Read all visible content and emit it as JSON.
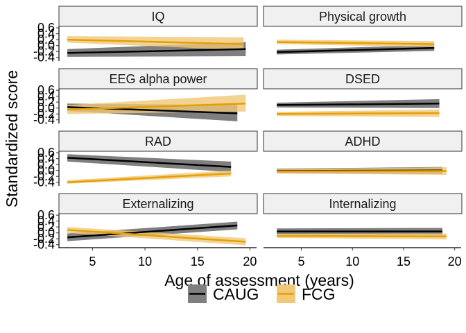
{
  "chart_data": {
    "type": "line",
    "title": "",
    "xlabel": "Age of assessment (years)",
    "ylabel": "Standardized score",
    "xticks": [
      5,
      10,
      15,
      20
    ],
    "yticks": [
      0.6,
      0.4,
      0.2,
      0.0,
      -0.2,
      -0.4
    ],
    "ytick_labels": [
      "0.6",
      "0.4",
      "0.2",
      "0.0",
      "-0.2",
      "-0.4"
    ],
    "ylim": [
      -0.5,
      0.65
    ],
    "legend": {
      "position": "bottom",
      "entries": [
        {
          "label": "CAUG",
          "line_color": "#000000",
          "fill_color": "#7f7f7f"
        },
        {
          "label": "FCG",
          "line_color": "#e69f00",
          "fill_color": "#f0c878"
        }
      ]
    },
    "panels": [
      {
        "label": "IQ",
        "xlim": [
          1.8,
          20.7
        ],
        "series": [
          {
            "name": "CAUG",
            "x": [
              2.6,
              19.6
            ],
            "y": [
              -0.25,
              -0.12
            ],
            "lo": [
              -0.38,
              -0.36
            ],
            "hi": [
              -0.12,
              0.12
            ]
          },
          {
            "name": "FCG",
            "x": [
              2.6,
              19.4
            ],
            "y": [
              0.2,
              0.05
            ],
            "lo": [
              0.1,
              -0.15
            ],
            "hi": [
              0.32,
              0.28
            ]
          }
        ]
      },
      {
        "label": "Physical growth",
        "xlim": [
          1.3,
          20.7
        ],
        "series": [
          {
            "name": "CAUG",
            "x": [
              2.6,
              18.0
            ],
            "y": [
              -0.22,
              -0.08
            ],
            "lo": [
              -0.3,
              -0.18
            ],
            "hi": [
              -0.14,
              0.02
            ]
          },
          {
            "name": "FCG",
            "x": [
              2.6,
              18.0
            ],
            "y": [
              0.12,
              0.05
            ],
            "lo": [
              0.05,
              -0.05
            ],
            "hi": [
              0.2,
              0.15
            ]
          }
        ]
      },
      {
        "label": "EEG alpha power",
        "xlim": [
          1.8,
          20.7
        ],
        "series": [
          {
            "name": "CAUG",
            "x": [
              2.6,
              18.8
            ],
            "y": [
              0.03,
              -0.18
            ],
            "lo": [
              -0.1,
              -0.45
            ],
            "hi": [
              0.15,
              0.1
            ]
          },
          {
            "name": "FCG",
            "x": [
              2.6,
              19.6
            ],
            "y": [
              -0.05,
              0.15
            ],
            "lo": [
              -0.2,
              -0.12
            ],
            "hi": [
              0.1,
              0.45
            ]
          }
        ]
      },
      {
        "label": "DSED",
        "xlim": [
          1.3,
          20.7
        ],
        "series": [
          {
            "name": "CAUG",
            "x": [
              2.6,
              18.5
            ],
            "y": [
              0.1,
              0.15
            ],
            "lo": [
              0.02,
              0.0
            ],
            "hi": [
              0.18,
              0.3
            ]
          },
          {
            "name": "FCG",
            "x": [
              2.6,
              18.5
            ],
            "y": [
              -0.2,
              -0.17
            ],
            "lo": [
              -0.27,
              -0.3
            ],
            "hi": [
              -0.13,
              -0.05
            ]
          }
        ]
      },
      {
        "label": "RAD",
        "xlim": [
          1.8,
          20.7
        ],
        "series": [
          {
            "name": "CAUG",
            "x": [
              2.6,
              18.2
            ],
            "y": [
              0.43,
              0.12
            ],
            "lo": [
              0.3,
              -0.05
            ],
            "hi": [
              0.55,
              0.3
            ]
          },
          {
            "name": "FCG",
            "x": [
              2.6,
              18.2
            ],
            "y": [
              -0.4,
              -0.1
            ],
            "lo": [
              -0.45,
              -0.2
            ],
            "hi": [
              -0.33,
              0.0
            ]
          }
        ]
      },
      {
        "label": "ADHD",
        "xlim": [
          1.3,
          20.7
        ],
        "series": [
          {
            "name": "CAUG",
            "x": [
              2.6,
              18.8
            ],
            "y": [
              -0.02,
              0.0
            ],
            "lo": [
              -0.1,
              -0.12
            ],
            "hi": [
              0.06,
              0.12
            ]
          },
          {
            "name": "FCG",
            "x": [
              2.6,
              19.2
            ],
            "y": [
              -0.03,
              -0.02
            ],
            "lo": [
              -0.1,
              -0.15
            ],
            "hi": [
              0.04,
              0.11
            ]
          }
        ]
      },
      {
        "label": "Externalizing",
        "xlim": [
          1.8,
          20.7
        ],
        "series": [
          {
            "name": "CAUG",
            "x": [
              2.6,
              18.8
            ],
            "y": [
              -0.15,
              0.25
            ],
            "lo": [
              -0.28,
              0.12
            ],
            "hi": [
              -0.02,
              0.38
            ]
          },
          {
            "name": "FCG",
            "x": [
              2.6,
              19.6
            ],
            "y": [
              0.1,
              -0.3
            ],
            "lo": [
              0.0,
              -0.42
            ],
            "hi": [
              0.2,
              -0.18
            ]
          }
        ]
      },
      {
        "label": "Internalizing",
        "xlim": [
          1.3,
          20.7
        ],
        "series": [
          {
            "name": "CAUG",
            "x": [
              2.6,
              18.8
            ],
            "y": [
              0.05,
              0.05
            ],
            "lo": [
              -0.05,
              -0.07
            ],
            "hi": [
              0.15,
              0.17
            ]
          },
          {
            "name": "FCG",
            "x": [
              2.6,
              19.2
            ],
            "y": [
              -0.1,
              -0.12
            ],
            "lo": [
              -0.17,
              -0.22
            ],
            "hi": [
              -0.03,
              -0.02
            ]
          }
        ]
      }
    ]
  }
}
